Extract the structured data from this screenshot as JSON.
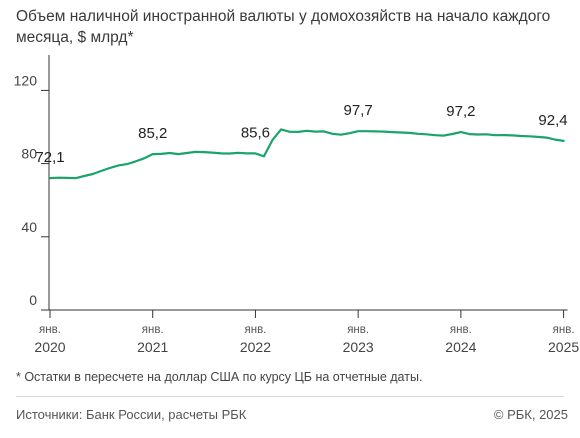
{
  "title": "Объем наличной иностранной валюты у домохозяйств на начало каждого месяца, $ млрд*",
  "footnote": "* Остатки в пересчете на доллар США по курсу ЦБ на отчетные даты.",
  "source": "Источники: Банк России, расчеты РБК",
  "copyright": "© РБК, 2025",
  "colors": {
    "line": "#1aa36b",
    "axis": "#333333",
    "text": "#333333"
  },
  "chart_data": {
    "type": "line",
    "title": "Объем наличной иностранной валюты у домохозяйств на начало каждого месяца, $ млрд*",
    "xlabel": "",
    "ylabel": "",
    "ylim": [
      0,
      135
    ],
    "yticks": [
      0,
      40,
      80,
      120
    ],
    "grid": false,
    "x_start": "2020-01",
    "xtick_labels": [
      {
        "month": "янв.",
        "year": "2020"
      },
      {
        "month": "янв.",
        "year": "2021"
      },
      {
        "month": "янв.",
        "year": "2022"
      },
      {
        "month": "янв.",
        "year": "2023"
      },
      {
        "month": "янв.",
        "year": "2024"
      },
      {
        "month": "янв.",
        "year": "2025"
      }
    ],
    "values": [
      72.1,
      72.3,
      72.2,
      72.0,
      73.2,
      74.3,
      76.0,
      77.6,
      79.0,
      79.7,
      81.2,
      82.9,
      85.2,
      85.3,
      85.8,
      85.2,
      85.8,
      86.4,
      86.3,
      86.0,
      85.6,
      85.5,
      85.9,
      85.6,
      85.6,
      84.0,
      93.0,
      98.7,
      97.4,
      97.3,
      97.9,
      97.5,
      97.6,
      96.3,
      95.8,
      96.6,
      97.7,
      97.7,
      97.6,
      97.5,
      97.2,
      97.0,
      96.8,
      96.3,
      96.0,
      95.5,
      95.3,
      96.2,
      97.2,
      96.1,
      95.9,
      96.0,
      95.5,
      95.6,
      95.4,
      95.1,
      94.9,
      94.6,
      94.2,
      93.1,
      92.4
    ],
    "annotations": [
      {
        "index": 0,
        "label": "72,1"
      },
      {
        "index": 12,
        "label": "85,2"
      },
      {
        "index": 24,
        "label": "85,6"
      },
      {
        "index": 36,
        "label": "97,7"
      },
      {
        "index": 48,
        "label": "97,2"
      },
      {
        "index": 60,
        "label": "92,4"
      }
    ]
  }
}
